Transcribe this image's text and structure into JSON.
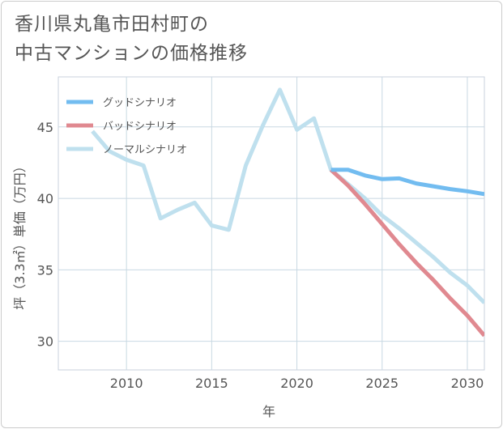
{
  "title": {
    "line1": "香川県丸亀市田村町の",
    "line2": "中古マンションの価格推移"
  },
  "chart_data": {
    "type": "line",
    "xlabel": "年",
    "ylabel": "坪（3.3㎡）単価（万円）",
    "xlim": [
      2006,
      2031
    ],
    "ylim": [
      28,
      48.5
    ],
    "x_ticks": [
      2010,
      2015,
      2020,
      2025,
      2030
    ],
    "y_ticks": [
      30,
      35,
      40,
      45
    ],
    "grid": true,
    "legend_position": "top-left",
    "series": [
      {
        "name": "グッドシナリオ",
        "color": "#72bcf0",
        "x": [
          2022,
          2023,
          2024,
          2025,
          2026,
          2027,
          2028,
          2029,
          2030,
          2031
        ],
        "values": [
          42.0,
          42.0,
          41.6,
          41.35,
          41.4,
          41.05,
          40.85,
          40.65,
          40.5,
          40.3
        ]
      },
      {
        "name": "バッドシナリオ",
        "color": "#e08990",
        "x": [
          2022,
          2023,
          2024,
          2025,
          2026,
          2027,
          2028,
          2029,
          2030,
          2031
        ],
        "values": [
          42.0,
          40.9,
          39.6,
          38.2,
          36.8,
          35.5,
          34.3,
          33.0,
          31.8,
          30.4
        ]
      },
      {
        "name": "ノーマルシナリオ",
        "color": "#bfe0ee",
        "x": [
          2008,
          2009,
          2010,
          2011,
          2012,
          2013,
          2014,
          2015,
          2016,
          2017,
          2018,
          2019,
          2020,
          2021,
          2022,
          2023,
          2024,
          2025,
          2026,
          2027,
          2028,
          2029,
          2030,
          2031
        ],
        "values": [
          44.7,
          43.3,
          42.7,
          42.3,
          38.6,
          39.2,
          39.7,
          38.1,
          37.8,
          42.3,
          45.1,
          47.6,
          44.8,
          45.6,
          42.0,
          41.0,
          40.0,
          38.8,
          37.9,
          36.9,
          35.9,
          34.8,
          33.9,
          32.7
        ]
      }
    ]
  }
}
